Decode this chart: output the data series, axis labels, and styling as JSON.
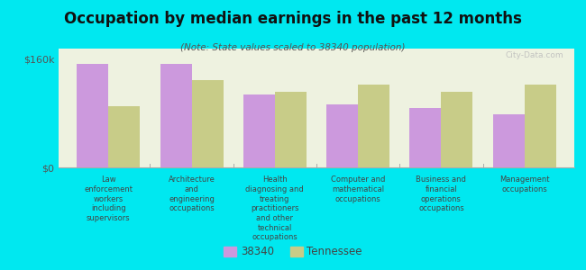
{
  "title": "Occupation by median earnings in the past 12 months",
  "subtitle": "(Note: State values scaled to 38340 population)",
  "background_color": "#00e8f0",
  "plot_bg_color": "#eef2e0",
  "categories": [
    "Law\nenforcement\nworkers\nincluding\nsupervisors",
    "Architecture\nand\nengineering\noccupations",
    "Health\ndiagnosing and\ntreating\npractitioners\nand other\ntechnical\noccupations",
    "Computer and\nmathematical\noccupations",
    "Business and\nfinancial\noperations\noccupations",
    "Management\noccupations"
  ],
  "values_38340": [
    152000,
    153000,
    108000,
    93000,
    88000,
    78000
  ],
  "values_tennessee": [
    90000,
    128000,
    112000,
    122000,
    112000,
    122000
  ],
  "color_38340": "#cc99dd",
  "color_tennessee": "#c8cc88",
  "ylim": [
    0,
    175000
  ],
  "ytick_labels": [
    "$0",
    "$160k"
  ],
  "ytick_vals": [
    0,
    160000
  ],
  "legend_label_38340": "38340",
  "legend_label_tennessee": "Tennessee",
  "watermark": "City-Data.com"
}
